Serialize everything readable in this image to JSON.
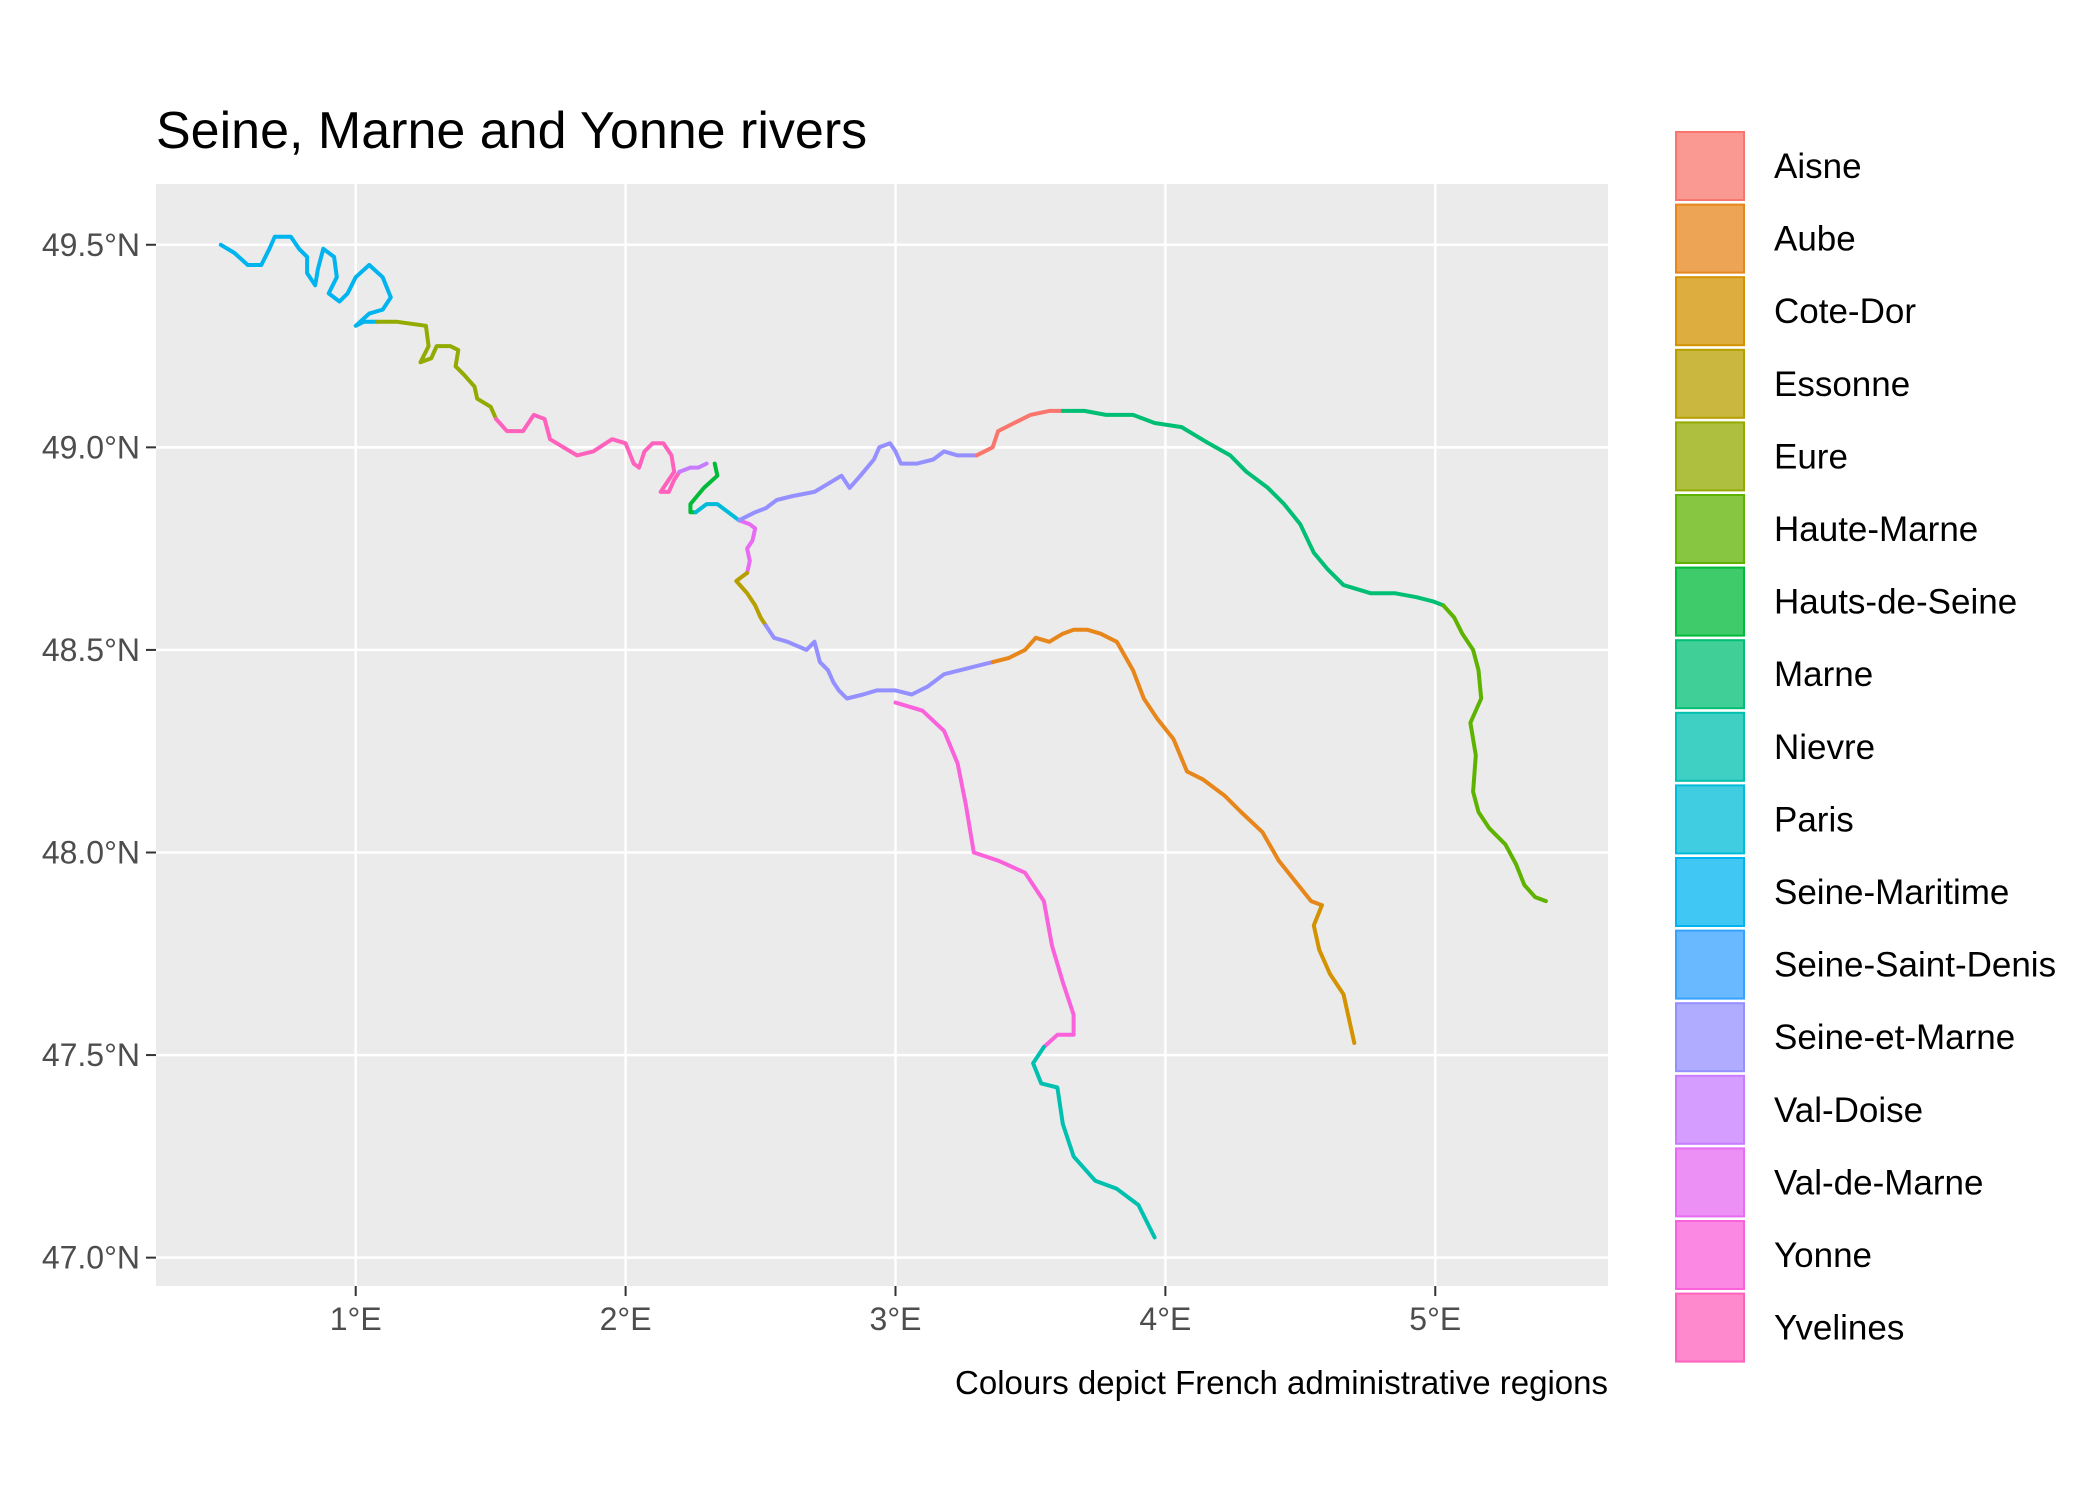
{
  "chart_data": {
    "type": "line",
    "title": "Seine, Marne and Yonne rivers",
    "caption": "Colours depict French administrative regions",
    "x_ticks": [
      "1°E",
      "2°E",
      "3°E",
      "4°E",
      "5°E"
    ],
    "x_tick_values": [
      1,
      2,
      3,
      4,
      5
    ],
    "y_ticks": [
      "47.0°N",
      "47.5°N",
      "48.0°N",
      "48.5°N",
      "49.0°N",
      "49.5°N"
    ],
    "y_tick_values": [
      47.0,
      47.5,
      48.0,
      48.5,
      49.0,
      49.5
    ],
    "xlim": [
      0.26,
      5.64
    ],
    "ylim": [
      46.93,
      49.65
    ],
    "grid": true,
    "legend_position": "right",
    "legend": [
      {
        "name": "Aisne",
        "color": "#F8766D"
      },
      {
        "name": "Aube",
        "color": "#E7861B"
      },
      {
        "name": "Cote-Dor",
        "color": "#D39200"
      },
      {
        "name": "Essonne",
        "color": "#B79F00"
      },
      {
        "name": "Eure",
        "color": "#93AA00"
      },
      {
        "name": "Haute-Marne",
        "color": "#5EB300"
      },
      {
        "name": "Hauts-de-Seine",
        "color": "#00BA38"
      },
      {
        "name": "Marne",
        "color": "#00BF74"
      },
      {
        "name": "Nievre",
        "color": "#00C0AF"
      },
      {
        "name": "Paris",
        "color": "#00BCD8"
      },
      {
        "name": "Seine-Maritime",
        "color": "#00B4F0"
      },
      {
        "name": "Seine-Saint-Denis",
        "color": "#35A2FF"
      },
      {
        "name": "Seine-et-Marne",
        "color": "#9590FF"
      },
      {
        "name": "Val-Doise",
        "color": "#C77CFF"
      },
      {
        "name": "Val-de-Marne",
        "color": "#E76BF3"
      },
      {
        "name": "Yonne",
        "color": "#FA62DB"
      },
      {
        "name": "Yvelines",
        "color": "#FF62BC"
      }
    ],
    "series": [
      {
        "region": "Seine-Maritime",
        "color": "#00B4F0",
        "points": [
          [
            0.5,
            49.5
          ],
          [
            0.55,
            49.48
          ],
          [
            0.6,
            49.45
          ],
          [
            0.65,
            49.45
          ],
          [
            0.68,
            49.49
          ],
          [
            0.7,
            49.52
          ],
          [
            0.76,
            49.52
          ],
          [
            0.79,
            49.49
          ],
          [
            0.82,
            49.47
          ],
          [
            0.82,
            49.43
          ],
          [
            0.85,
            49.4
          ],
          [
            0.86,
            49.44
          ],
          [
            0.88,
            49.49
          ],
          [
            0.92,
            49.47
          ],
          [
            0.93,
            49.42
          ],
          [
            0.9,
            49.38
          ],
          [
            0.94,
            49.36
          ],
          [
            0.97,
            49.38
          ],
          [
            1.0,
            49.42
          ],
          [
            1.05,
            49.45
          ],
          [
            1.1,
            49.42
          ],
          [
            1.13,
            49.37
          ],
          [
            1.1,
            49.34
          ],
          [
            1.05,
            49.33
          ],
          [
            1.0,
            49.3
          ],
          [
            1.03,
            49.31
          ],
          [
            1.08,
            49.31
          ]
        ]
      },
      {
        "region": "Eure",
        "color": "#93AA00",
        "points": [
          [
            1.08,
            49.31
          ],
          [
            1.15,
            49.31
          ],
          [
            1.26,
            49.3
          ],
          [
            1.27,
            49.25
          ],
          [
            1.24,
            49.21
          ],
          [
            1.28,
            49.22
          ],
          [
            1.3,
            49.25
          ],
          [
            1.35,
            49.25
          ],
          [
            1.38,
            49.24
          ],
          [
            1.37,
            49.2
          ],
          [
            1.4,
            49.18
          ],
          [
            1.44,
            49.15
          ],
          [
            1.45,
            49.12
          ],
          [
            1.5,
            49.1
          ],
          [
            1.52,
            49.07
          ]
        ]
      },
      {
        "region": "Yvelines",
        "color": "#FF62BC",
        "points": [
          [
            1.52,
            49.07
          ],
          [
            1.56,
            49.04
          ],
          [
            1.62,
            49.04
          ],
          [
            1.66,
            49.08
          ],
          [
            1.7,
            49.07
          ],
          [
            1.72,
            49.02
          ],
          [
            1.77,
            49.0
          ],
          [
            1.82,
            48.98
          ],
          [
            1.88,
            48.99
          ],
          [
            1.95,
            49.02
          ],
          [
            2.0,
            49.01
          ],
          [
            2.03,
            48.96
          ],
          [
            2.05,
            48.95
          ],
          [
            2.07,
            48.99
          ],
          [
            2.1,
            49.01
          ],
          [
            2.14,
            49.01
          ],
          [
            2.17,
            48.98
          ],
          [
            2.18,
            48.94
          ],
          [
            2.15,
            48.91
          ],
          [
            2.13,
            48.89
          ],
          [
            2.16,
            48.89
          ],
          [
            2.18,
            48.92
          ],
          [
            2.2,
            48.94
          ]
        ]
      },
      {
        "region": "Val-Doise",
        "color": "#C77CFF",
        "points": [
          [
            2.2,
            48.94
          ],
          [
            2.24,
            48.95
          ],
          [
            2.27,
            48.95
          ],
          [
            2.3,
            48.96
          ]
        ]
      },
      {
        "region": "Hauts-de-Seine",
        "color": "#00BA38",
        "points": [
          [
            2.33,
            48.96
          ],
          [
            2.34,
            48.93
          ],
          [
            2.29,
            48.9
          ],
          [
            2.24,
            48.86
          ],
          [
            2.24,
            48.84
          ],
          [
            2.26,
            48.84
          ]
        ]
      },
      {
        "region": "Paris",
        "color": "#00BCD8",
        "points": [
          [
            2.26,
            48.84
          ],
          [
            2.3,
            48.86
          ],
          [
            2.34,
            48.86
          ],
          [
            2.38,
            48.84
          ],
          [
            2.42,
            48.82
          ]
        ]
      },
      {
        "region": "Val-de-Marne",
        "color": "#E76BF3",
        "points": [
          [
            2.42,
            48.82
          ],
          [
            2.46,
            48.81
          ],
          [
            2.48,
            48.8
          ],
          [
            2.47,
            48.77
          ],
          [
            2.45,
            48.75
          ],
          [
            2.46,
            48.72
          ],
          [
            2.45,
            48.69
          ]
        ]
      },
      {
        "region": "Essonne",
        "color": "#B79F00",
        "points": [
          [
            2.45,
            48.69
          ],
          [
            2.41,
            48.67
          ],
          [
            2.45,
            48.64
          ],
          [
            2.48,
            48.61
          ],
          [
            2.5,
            48.58
          ],
          [
            2.52,
            48.56
          ]
        ]
      },
      {
        "region": "Seine-et-Marne",
        "color": "#9590FF",
        "points": [
          [
            2.52,
            48.56
          ],
          [
            2.55,
            48.53
          ],
          [
            2.6,
            48.52
          ],
          [
            2.67,
            48.5
          ],
          [
            2.7,
            48.52
          ],
          [
            2.72,
            48.47
          ],
          [
            2.75,
            48.45
          ],
          [
            2.77,
            48.42
          ],
          [
            2.79,
            48.4
          ],
          [
            2.82,
            48.38
          ],
          [
            2.88,
            48.39
          ],
          [
            2.93,
            48.4
          ],
          [
            3.0,
            48.4
          ],
          [
            3.06,
            48.39
          ],
          [
            3.12,
            48.41
          ],
          [
            3.18,
            48.44
          ],
          [
            3.24,
            48.45
          ],
          [
            3.3,
            48.46
          ],
          [
            3.36,
            48.47
          ]
        ]
      },
      {
        "region": "Aube",
        "color": "#E7861B",
        "points": [
          [
            3.36,
            48.47
          ],
          [
            3.42,
            48.48
          ],
          [
            3.48,
            48.5
          ],
          [
            3.52,
            48.53
          ],
          [
            3.57,
            48.52
          ],
          [
            3.62,
            48.54
          ],
          [
            3.66,
            48.55
          ],
          [
            3.71,
            48.55
          ],
          [
            3.76,
            48.54
          ],
          [
            3.82,
            48.52
          ],
          [
            3.88,
            48.45
          ],
          [
            3.92,
            48.38
          ],
          [
            3.97,
            48.33
          ],
          [
            4.03,
            48.28
          ],
          [
            4.08,
            48.2
          ],
          [
            4.14,
            48.18
          ],
          [
            4.22,
            48.14
          ],
          [
            4.28,
            48.1
          ],
          [
            4.36,
            48.05
          ],
          [
            4.42,
            47.98
          ],
          [
            4.48,
            47.93
          ],
          [
            4.54,
            47.88
          ],
          [
            4.58,
            47.87
          ]
        ]
      },
      {
        "region": "Cote-Dor",
        "color": "#D39200",
        "points": [
          [
            4.58,
            47.87
          ],
          [
            4.55,
            47.82
          ],
          [
            4.57,
            47.76
          ],
          [
            4.61,
            47.7
          ],
          [
            4.66,
            47.65
          ],
          [
            4.68,
            47.59
          ],
          [
            4.7,
            47.53
          ]
        ]
      },
      {
        "region": "Yonne",
        "color": "#FA62DB",
        "points": [
          [
            3.0,
            48.37
          ],
          [
            3.1,
            48.35
          ],
          [
            3.18,
            48.3
          ],
          [
            3.23,
            48.22
          ],
          [
            3.26,
            48.12
          ],
          [
            3.29,
            48.0
          ],
          [
            3.38,
            47.98
          ],
          [
            3.48,
            47.95
          ],
          [
            3.55,
            47.88
          ],
          [
            3.58,
            47.77
          ],
          [
            3.62,
            47.68
          ],
          [
            3.66,
            47.6
          ],
          [
            3.66,
            47.55
          ],
          [
            3.6,
            47.55
          ],
          [
            3.55,
            47.52
          ]
        ]
      },
      {
        "region": "Nievre",
        "color": "#00C0AF",
        "points": [
          [
            3.55,
            47.52
          ],
          [
            3.51,
            47.48
          ],
          [
            3.54,
            47.43
          ],
          [
            3.6,
            47.42
          ],
          [
            3.62,
            47.33
          ],
          [
            3.66,
            47.25
          ],
          [
            3.74,
            47.19
          ],
          [
            3.82,
            47.17
          ],
          [
            3.9,
            47.13
          ],
          [
            3.96,
            47.05
          ]
        ]
      },
      {
        "region": "Seine-et-Marne",
        "color": "#9590FF",
        "points": [
          [
            2.42,
            48.82
          ],
          [
            2.48,
            48.84
          ],
          [
            2.52,
            48.85
          ],
          [
            2.56,
            48.87
          ],
          [
            2.62,
            48.88
          ],
          [
            2.7,
            48.89
          ],
          [
            2.75,
            48.91
          ],
          [
            2.8,
            48.93
          ],
          [
            2.83,
            48.9
          ],
          [
            2.87,
            48.93
          ],
          [
            2.92,
            48.97
          ],
          [
            2.94,
            49.0
          ],
          [
            2.98,
            49.01
          ],
          [
            3.0,
            48.99
          ],
          [
            3.02,
            48.96
          ],
          [
            3.08,
            48.96
          ],
          [
            3.14,
            48.97
          ],
          [
            3.18,
            48.99
          ],
          [
            3.23,
            48.98
          ],
          [
            3.3,
            48.98
          ]
        ]
      },
      {
        "region": "Aisne",
        "color": "#F8766D",
        "points": [
          [
            3.3,
            48.98
          ],
          [
            3.36,
            49.0
          ],
          [
            3.38,
            49.04
          ],
          [
            3.44,
            49.06
          ],
          [
            3.5,
            49.08
          ],
          [
            3.57,
            49.09
          ],
          [
            3.62,
            49.09
          ]
        ]
      },
      {
        "region": "Marne",
        "color": "#00BF74",
        "points": [
          [
            3.62,
            49.09
          ],
          [
            3.7,
            49.09
          ],
          [
            3.78,
            49.08
          ],
          [
            3.88,
            49.08
          ],
          [
            3.96,
            49.06
          ],
          [
            4.06,
            49.05
          ],
          [
            4.16,
            49.01
          ],
          [
            4.24,
            48.98
          ],
          [
            4.3,
            48.94
          ],
          [
            4.38,
            48.9
          ],
          [
            4.44,
            48.86
          ],
          [
            4.5,
            48.81
          ],
          [
            4.55,
            48.74
          ],
          [
            4.6,
            48.7
          ],
          [
            4.66,
            48.66
          ],
          [
            4.76,
            48.64
          ],
          [
            4.85,
            48.64
          ],
          [
            4.93,
            48.63
          ],
          [
            4.99,
            48.62
          ],
          [
            5.03,
            48.61
          ]
        ]
      },
      {
        "region": "Haute-Marne",
        "color": "#5EB300",
        "points": [
          [
            5.03,
            48.61
          ],
          [
            5.07,
            48.58
          ],
          [
            5.1,
            48.54
          ],
          [
            5.14,
            48.5
          ],
          [
            5.16,
            48.45
          ],
          [
            5.17,
            48.38
          ],
          [
            5.13,
            48.32
          ],
          [
            5.15,
            48.24
          ],
          [
            5.14,
            48.15
          ],
          [
            5.16,
            48.1
          ],
          [
            5.2,
            48.06
          ],
          [
            5.26,
            48.02
          ],
          [
            5.3,
            47.97
          ],
          [
            5.33,
            47.92
          ],
          [
            5.37,
            47.89
          ],
          [
            5.41,
            47.88
          ]
        ]
      }
    ]
  }
}
